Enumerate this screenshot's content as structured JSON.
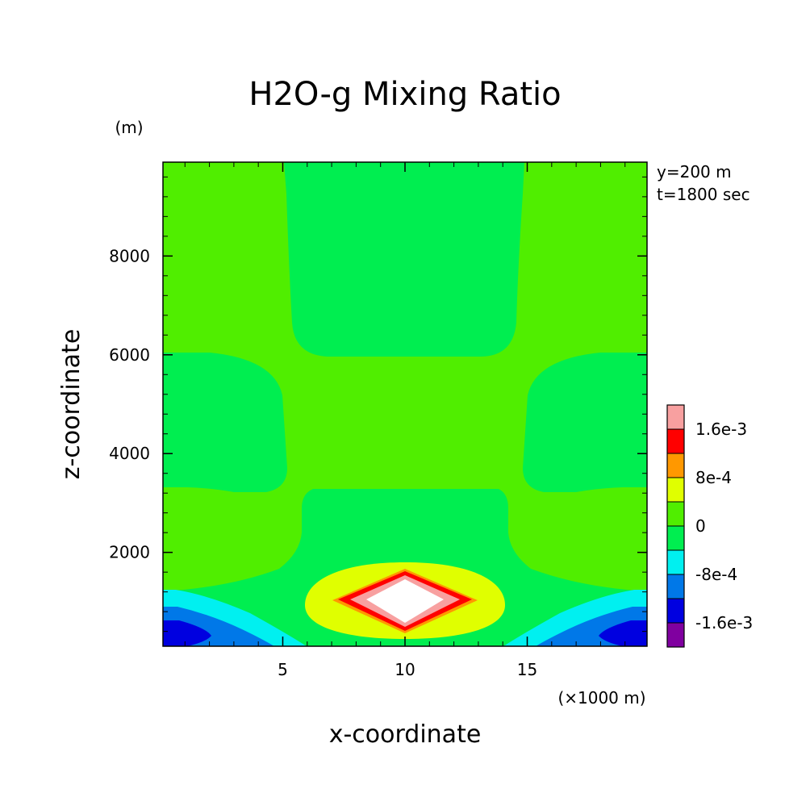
{
  "chart_data": {
    "type": "heatmap",
    "title": "H2O-g Mixing Ratio",
    "xlabel": "x-coordinate",
    "ylabel": "z-coordinate",
    "x_unit": "(×1000 m)",
    "y_unit": "(m)",
    "annotations": [
      "y=200 m",
      "t=1800 sec"
    ],
    "xlim": [
      0.1,
      19.9
    ],
    "ylim": [
      100,
      9900
    ],
    "x_ticks": [
      5,
      10,
      15
    ],
    "x_tick_labels": [
      "5",
      "10",
      "15"
    ],
    "y_ticks": [
      2000,
      4000,
      6000,
      8000
    ],
    "y_tick_labels": [
      "2000",
      "4000",
      "6000",
      "8000"
    ],
    "colorbar": {
      "levels": [
        -0.002,
        -0.0016,
        -0.0012,
        -0.0008,
        -0.0004,
        0,
        0.0004,
        0.0008,
        0.0012,
        0.0016,
        0.002
      ],
      "colors": [
        "#8000a0",
        "#0000e0",
        "#0078e8",
        "#00f0f0",
        "#00ee50",
        "#50ee00",
        "#e0ff00",
        "#ff9800",
        "#ff0000",
        "#f8a0a0"
      ],
      "tick_labels": [
        "-1.6e-3",
        "-8e-4",
        "0",
        "8e-4",
        "1.6e-3"
      ],
      "tick_values": [
        -0.0016,
        -0.0008,
        0,
        0.0008,
        0.0016
      ]
    },
    "field_features": [
      {
        "kind": "positive-maximum",
        "x": 10,
        "z": 1000,
        "max_value": 0.002
      },
      {
        "kind": "negative-minimum",
        "x": 1,
        "z": 300,
        "min_value": -0.0016
      },
      {
        "kind": "negative-minimum",
        "x": 19,
        "z": 300,
        "min_value": -0.0016
      }
    ]
  }
}
